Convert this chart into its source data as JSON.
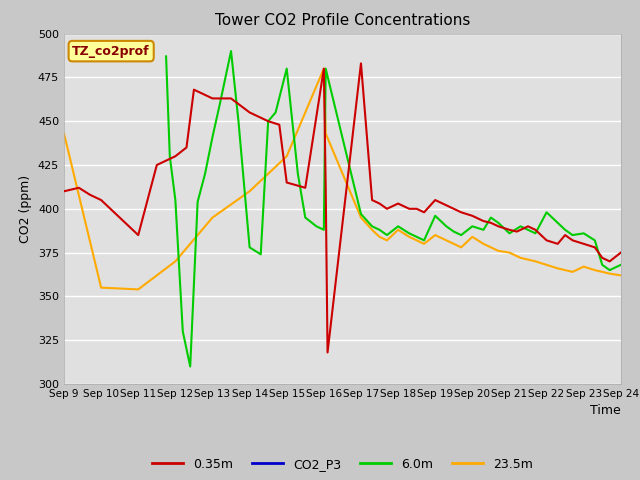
{
  "title": "Tower CO2 Profile Concentrations",
  "xlabel": "Time",
  "ylabel": "CO2 (ppm)",
  "ylim": [
    300,
    500
  ],
  "background_color": "#c8c8c8",
  "plot_bg_color": "#e0e0e0",
  "grid_color": "#ffffff",
  "annotation_text": "TZ_co2prof",
  "annotation_bg": "#ffff99",
  "annotation_border": "#cc8800",
  "x_tick_labels": [
    "Sep 9",
    "Sep 10",
    "Sep 11",
    "Sep 12",
    "Sep 13",
    "Sep 14",
    "Sep 15",
    "Sep 16",
    "Sep 17",
    "Sep 18",
    "Sep 19",
    "Sep 20",
    "Sep 21",
    "Sep 22",
    "Sep 23",
    "Sep 24"
  ],
  "series": {
    "red_035m": {
      "color": "#cc0000",
      "label": "0.35m",
      "x": [
        0,
        0.4,
        0.7,
        1.0,
        1.5,
        2.0,
        2.5,
        3.0,
        3.3,
        3.5,
        3.8,
        4.0,
        4.5,
        5.0,
        5.3,
        5.5,
        5.8,
        6.0,
        6.5,
        7.0,
        7.05,
        7.1,
        8.0,
        8.3,
        8.5,
        8.7,
        9.0,
        9.3,
        9.5,
        9.7,
        10.0,
        10.3,
        10.5,
        10.7,
        11.0,
        11.3,
        11.5,
        11.7,
        12.0,
        12.2,
        12.5,
        12.7,
        13.0,
        13.3,
        13.5,
        13.7,
        14.0,
        14.3,
        14.5,
        14.7,
        15.0
      ],
      "y": [
        410,
        412,
        408,
        405,
        395,
        385,
        425,
        430,
        435,
        468,
        465,
        463,
        463,
        455,
        452,
        450,
        448,
        415,
        412,
        480,
        412,
        318,
        483,
        405,
        403,
        400,
        403,
        400,
        400,
        398,
        405,
        402,
        400,
        398,
        396,
        393,
        392,
        390,
        388,
        387,
        390,
        388,
        382,
        380,
        385,
        382,
        380,
        378,
        372,
        370,
        375
      ]
    },
    "blue_CO2P3": {
      "color": "#0000cc",
      "label": "CO2_P3",
      "x": [],
      "y": []
    },
    "green_6m": {
      "color": "#00cc00",
      "label": "6.0m",
      "x": [
        2.75,
        2.85,
        3.0,
        3.2,
        3.4,
        3.6,
        3.8,
        4.0,
        4.2,
        4.5,
        4.7,
        5.0,
        5.15,
        5.3,
        5.5,
        5.7,
        6.0,
        6.3,
        6.5,
        6.8,
        7.0,
        7.05,
        8.0,
        8.3,
        8.5,
        8.7,
        9.0,
        9.3,
        9.5,
        9.7,
        10.0,
        10.3,
        10.5,
        10.7,
        11.0,
        11.3,
        11.5,
        11.7,
        12.0,
        12.3,
        12.5,
        12.7,
        13.0,
        13.3,
        13.5,
        13.7,
        14.0,
        14.3,
        14.5,
        14.7,
        15.0
      ],
      "y": [
        487,
        430,
        405,
        330,
        310,
        404,
        420,
        441,
        460,
        490,
        450,
        378,
        376,
        374,
        450,
        455,
        480,
        420,
        395,
        390,
        388,
        480,
        397,
        390,
        388,
        385,
        390,
        386,
        384,
        382,
        396,
        390,
        387,
        385,
        390,
        388,
        395,
        392,
        386,
        390,
        388,
        386,
        398,
        392,
        388,
        385,
        386,
        382,
        368,
        365,
        368
      ]
    },
    "orange_235m": {
      "color": "#ffaa00",
      "label": "23.5m",
      "x": [
        0.0,
        1.0,
        2.0,
        3.0,
        4.0,
        5.0,
        6.0,
        7.0,
        7.05,
        8.0,
        8.3,
        8.5,
        8.7,
        9.0,
        9.3,
        9.5,
        9.7,
        10.0,
        10.3,
        10.5,
        10.7,
        11.0,
        11.3,
        11.5,
        11.7,
        12.0,
        12.3,
        12.5,
        12.7,
        13.0,
        13.3,
        13.5,
        13.7,
        14.0,
        14.3,
        14.5,
        14.7,
        15.0
      ],
      "y": [
        443,
        355,
        354,
        370,
        395,
        410,
        430,
        480,
        443,
        395,
        388,
        384,
        382,
        388,
        384,
        382,
        380,
        385,
        382,
        380,
        378,
        384,
        380,
        378,
        376,
        375,
        372,
        371,
        370,
        368,
        366,
        365,
        364,
        367,
        365,
        364,
        363,
        362
      ]
    }
  },
  "legend_items": [
    {
      "label": "0.35m",
      "color": "#cc0000"
    },
    {
      "label": "CO2_P3",
      "color": "#0000cc"
    },
    {
      "label": "6.0m",
      "color": "#00cc00"
    },
    {
      "label": "23.5m",
      "color": "#ffaa00"
    }
  ]
}
